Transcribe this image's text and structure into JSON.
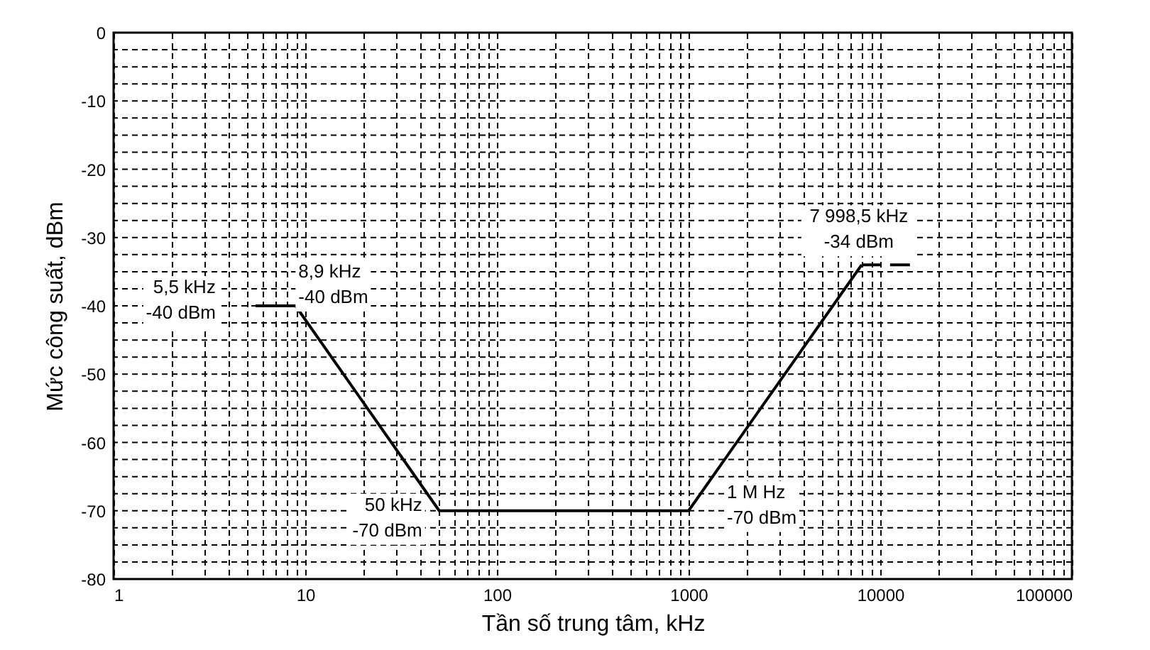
{
  "chart_data": {
    "type": "line",
    "xlabel": "Tần số trung tâm, kHz",
    "ylabel": "Mức công suất, dBm",
    "log": "x",
    "grid": true,
    "xlim": [
      1,
      100000
    ],
    "ylim": [
      -80,
      0
    ],
    "xticks": [
      1,
      {
        "value": 2,
        "label": null
      },
      {
        "value": 3,
        "label": null
      },
      {
        "value": 4,
        "label": null
      },
      {
        "value": 5,
        "label": null
      },
      {
        "value": 6,
        "label": null
      },
      {
        "value": 7,
        "label": null
      },
      {
        "value": 8,
        "label": null
      },
      {
        "value": 9,
        "label": null
      },
      10,
      {
        "value": 20,
        "label": null
      },
      {
        "value": 30,
        "label": null
      },
      {
        "value": 40,
        "label": null
      },
      {
        "value": 50,
        "label": null
      },
      {
        "value": 60,
        "label": null
      },
      {
        "value": 70,
        "label": null
      },
      {
        "value": 80,
        "label": null
      },
      {
        "value": 90,
        "label": null
      },
      100,
      {
        "value": 200,
        "label": null
      },
      {
        "value": 300,
        "label": null
      },
      {
        "value": 400,
        "label": null
      },
      {
        "value": 500,
        "label": null
      },
      {
        "value": 600,
        "label": null
      },
      {
        "value": 700,
        "label": null
      },
      {
        "value": 800,
        "label": null
      },
      {
        "value": 900,
        "label": null
      },
      1000,
      {
        "value": 2000,
        "label": null
      },
      {
        "value": 3000,
        "label": null
      },
      {
        "value": 4000,
        "label": null
      },
      {
        "value": 5000,
        "label": null
      },
      {
        "value": 6000,
        "label": null
      },
      {
        "value": 7000,
        "label": null
      },
      {
        "value": 8000,
        "label": null
      },
      {
        "value": 9000,
        "label": null
      },
      10000,
      {
        "value": 20000,
        "label": null
      },
      {
        "value": 30000,
        "label": null
      },
      {
        "value": 40000,
        "label": null
      },
      {
        "value": 50000,
        "label": null
      },
      {
        "value": 60000,
        "label": null
      },
      {
        "value": 70000,
        "label": null
      },
      {
        "value": 80000,
        "label": null
      },
      {
        "value": 90000,
        "label": null
      },
      100000
    ],
    "yticks": [
      -80,
      {
        "value": -77.5,
        "label": null
      },
      {
        "value": -75,
        "label": null
      },
      {
        "value": -72.5,
        "label": null
      },
      -70,
      {
        "value": -67.5,
        "label": null
      },
      {
        "value": -65,
        "label": null
      },
      {
        "value": -62.5,
        "label": null
      },
      -60,
      {
        "value": -57.5,
        "label": null
      },
      {
        "value": -55,
        "label": null
      },
      {
        "value": -52.5,
        "label": null
      },
      -50,
      {
        "value": -47.5,
        "label": null
      },
      {
        "value": -45,
        "label": null
      },
      {
        "value": -42.5,
        "label": null
      },
      -40,
      {
        "value": -37.5,
        "label": null
      },
      {
        "value": -35,
        "label": null
      },
      {
        "value": -32.5,
        "label": null
      },
      -30,
      {
        "value": -27.5,
        "label": null
      },
      {
        "value": -25,
        "label": null
      },
      {
        "value": -22.5,
        "label": null
      },
      -20,
      {
        "value": -17.5,
        "label": null
      },
      {
        "value": -15,
        "label": null
      },
      {
        "value": -12.5,
        "label": null
      },
      -10,
      {
        "value": -7.5,
        "label": null
      },
      {
        "value": -5,
        "label": null
      },
      {
        "value": -2.5,
        "label": null
      },
      0
    ],
    "series": [
      {
        "color": "#000000",
        "x": [
          5.5,
          8.9,
          50,
          1000,
          7998.5
        ],
        "values": [
          -40,
          -40,
          -70,
          -70,
          -34
        ],
        "line_style": "solid"
      },
      {
        "color": "#000000",
        "x": [
          7998.5,
          15000
        ],
        "values": [
          -34,
          -34
        ],
        "line_style": "dashed"
      }
    ],
    "annotations": [
      {
        "text": "5,5 kHz\n-40 dBm",
        "x": 5.5,
        "y": -40
      },
      {
        "text": "8,9 kHz\n-40 dBm",
        "x": 8.9,
        "y": -40
      },
      {
        "text": "50 kHz\n-70 dBm",
        "x": 50,
        "y": -70
      },
      {
        "text": "1 M Hz\n-70 dBm",
        "x": 1000,
        "y": -70
      },
      {
        "text": "7 998,5 kHz\n-34 dBm",
        "x": 7998.5,
        "y": -34
      }
    ]
  }
}
